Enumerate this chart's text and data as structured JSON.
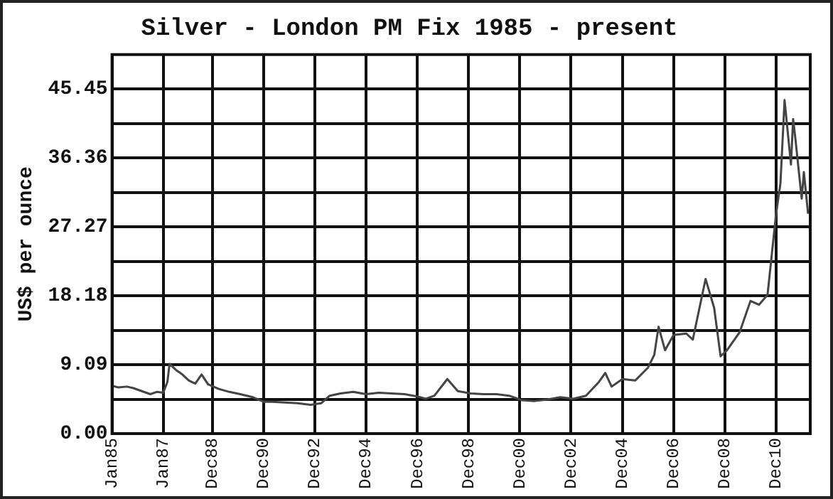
{
  "chart_data": {
    "type": "line",
    "title": "Silver - London PM Fix 1985 - present",
    "ylabel": "US$ per ounce",
    "x": [
      "1985-01",
      "1985-04",
      "1985-08",
      "1985-11",
      "1986-03",
      "1986-07",
      "1986-10",
      "1987-01",
      "1987-03",
      "1987-04",
      "1987-07",
      "1987-10",
      "1988-01",
      "1988-04",
      "1988-07",
      "1988-10",
      "1989-03",
      "1989-08",
      "1990-01",
      "1990-07",
      "1990-12",
      "1991-04",
      "1991-10",
      "1992-04",
      "1992-10",
      "1993-03",
      "1993-07",
      "1993-12",
      "1994-06",
      "1994-12",
      "1995-06",
      "1995-12",
      "1996-06",
      "1996-12",
      "1997-04",
      "1997-08",
      "1998-02",
      "1998-07",
      "1999-01",
      "1999-07",
      "2000-01",
      "2000-07",
      "2001-01",
      "2001-07",
      "2002-01",
      "2002-07",
      "2003-01",
      "2003-07",
      "2004-01",
      "2004-04",
      "2004-07",
      "2004-12",
      "2005-06",
      "2005-12",
      "2006-03",
      "2006-05",
      "2006-08",
      "2006-12",
      "2007-06",
      "2007-09",
      "2008-03",
      "2008-07",
      "2008-10",
      "2009-01",
      "2009-07",
      "2009-12",
      "2010-04",
      "2010-08",
      "2010-12",
      "2011-02",
      "2011-04",
      "2011-07",
      "2011-08",
      "2011-09",
      "2011-12",
      "2012-01",
      "2012-03"
    ],
    "values": [
      6.3,
      6.1,
      6.2,
      6.0,
      5.6,
      5.2,
      5.5,
      5.4,
      6.8,
      9.2,
      8.4,
      7.8,
      7.0,
      6.6,
      7.8,
      6.5,
      5.9,
      5.5,
      5.2,
      4.8,
      4.2,
      4.2,
      4.1,
      4.0,
      3.8,
      4.0,
      5.0,
      5.3,
      5.5,
      5.2,
      5.4,
      5.3,
      5.2,
      4.9,
      4.6,
      5.0,
      7.2,
      5.6,
      5.3,
      5.2,
      5.2,
      5.0,
      4.4,
      4.3,
      4.5,
      4.8,
      4.6,
      5.0,
      6.8,
      8.0,
      6.2,
      7.2,
      7.0,
      8.7,
      10.4,
      14.1,
      11.0,
      13.0,
      13.2,
      12.4,
      20.4,
      16.6,
      10.2,
      11.0,
      13.4,
      17.5,
      17.0,
      18.3,
      29.0,
      33.0,
      44.0,
      35.5,
      41.5,
      39.0,
      31.0,
      34.5,
      29.0
    ],
    "color": "#444444",
    "marker": "none",
    "line_style": "solid",
    "grid": true,
    "legend": false,
    "xlim": [
      "1985-01",
      "2012-04"
    ],
    "xticks": [
      {
        "value": "1985-01",
        "label": "Jan85"
      },
      {
        "value": "1987-01",
        "label": "Jan87"
      },
      {
        "value": "1988-12",
        "label": "Dec88"
      },
      {
        "value": "1990-12",
        "label": "Dec90"
      },
      {
        "value": "1992-12",
        "label": "Dec92"
      },
      {
        "value": "1994-12",
        "label": "Dec94"
      },
      {
        "value": "1996-12",
        "label": "Dec96"
      },
      {
        "value": "1998-12",
        "label": "Dec98"
      },
      {
        "value": "2000-12",
        "label": "Dec00"
      },
      {
        "value": "2002-12",
        "label": "Dec02"
      },
      {
        "value": "2004-12",
        "label": "Dec04"
      },
      {
        "value": "2006-12",
        "label": "Dec06"
      },
      {
        "value": "2008-12",
        "label": "Dec08"
      },
      {
        "value": "2010-12",
        "label": "Dec10"
      }
    ],
    "ylim": [
      0,
      50
    ],
    "yticks": [
      {
        "value": 0,
        "label": "0.00"
      },
      {
        "value": 4.545,
        "label": null
      },
      {
        "value": 9.09,
        "label": "9.09"
      },
      {
        "value": 13.635,
        "label": null
      },
      {
        "value": 18.18,
        "label": "18.18"
      },
      {
        "value": 22.725,
        "label": null
      },
      {
        "value": 27.27,
        "label": "27.27"
      },
      {
        "value": 31.815,
        "label": null
      },
      {
        "value": 36.36,
        "label": "36.36"
      },
      {
        "value": 40.905,
        "label": null
      },
      {
        "value": 45.45,
        "label": "45.45"
      }
    ]
  }
}
